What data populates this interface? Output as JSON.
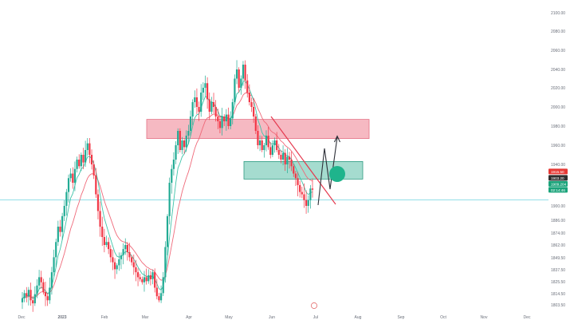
{
  "chart_data": {
    "type": "candlestick",
    "y_ticks": [
      2100,
      2080,
      2060,
      2040,
      2020,
      2000,
      1980,
      1960,
      1940,
      1920,
      1900,
      1886,
      1874,
      1862,
      1849.5,
      1837.5,
      1825.5,
      1814.5,
      1803.5
    ],
    "y_tick_labels": [
      "2100.00",
      "2080.00",
      "2060.00",
      "2040.00",
      "2020.00",
      "2000.00",
      "1980.00",
      "1960.00",
      "1940.00",
      "1920.00",
      "1900.00",
      "1886.00",
      "1874.00",
      "1862.00",
      "1849.50",
      "1837.50",
      "1825.50",
      "1814.50",
      "1803.50"
    ],
    "x_ticks": [
      {
        "label": "Dec",
        "bold": false
      },
      {
        "label": "2023",
        "bold": true
      },
      {
        "label": "Feb",
        "bold": false
      },
      {
        "label": "Mar",
        "bold": false
      },
      {
        "label": "Apr",
        "bold": false
      },
      {
        "label": "May",
        "bold": false
      },
      {
        "label": "Jun",
        "bold": false
      },
      {
        "label": "Jul",
        "bold": false
      },
      {
        "label": "Aug",
        "bold": false
      },
      {
        "label": "Sep",
        "bold": false
      },
      {
        "label": "Oct",
        "bold": false
      },
      {
        "label": "Nov",
        "bold": false
      },
      {
        "label": "Dec",
        "bold": false
      }
    ],
    "price_tags": [
      {
        "label": "1915.50",
        "color": "#e53935"
      },
      {
        "label": "1903.20",
        "color": "#2f2f2f"
      },
      {
        "label": "1909.204",
        "color": "#1aa37a"
      },
      {
        "label": "02:14:46",
        "color": "#1aa37a"
      }
    ],
    "current_price": 1915.5,
    "event_marker": "",
    "closes": [
      1810,
      1815,
      1812,
      1818,
      1808,
      1805,
      1814,
      1822,
      1830,
      1825,
      1816,
      1812,
      1808,
      1820,
      1835,
      1850,
      1865,
      1880,
      1875,
      1890,
      1900,
      1912,
      1925,
      1930,
      1920,
      1935,
      1945,
      1938,
      1950,
      1942,
      1955,
      1962,
      1950,
      1940,
      1928,
      1910,
      1895,
      1880,
      1870,
      1862,
      1865,
      1858,
      1850,
      1845,
      1838,
      1842,
      1848,
      1852,
      1858,
      1862,
      1855,
      1850,
      1845,
      1840,
      1835,
      1830,
      1828,
      1825,
      1830,
      1826,
      1832,
      1828,
      1835,
      1820,
      1812,
      1808,
      1815,
      1830,
      1860,
      1890,
      1920,
      1935,
      1945,
      1960,
      1975,
      1955,
      1965,
      1958,
      1970,
      1975,
      1990,
      2005,
      2010,
      2000,
      1995,
      2015,
      2020,
      2025,
      2008,
      1995,
      2005,
      2000,
      1990,
      1985,
      1978,
      1990,
      1985,
      1992,
      1980,
      1988,
      2005,
      2030,
      2040,
      2020,
      2030,
      2045,
      2028,
      2015,
      2005,
      2000,
      1990,
      1975,
      1960,
      1965,
      1955,
      1960,
      1970,
      1958,
      1950,
      1960,
      1965,
      1955,
      1950,
      1945,
      1952,
      1940,
      1948,
      1945,
      1938,
      1930,
      1925,
      1918,
      1912,
      1910,
      1905,
      1900,
      1905,
      1915,
      1914
    ],
    "series": [
      {
        "name": "",
        "color": "#ef6a7a"
      },
      {
        "name": "",
        "color": "#3fc4a9"
      }
    ]
  },
  "annotations": {
    "resistance_zone": {
      "y_top": 1987,
      "y_bottom": 1967,
      "color": "#f3a1ad"
    },
    "support_zone": {
      "y_top": 1943,
      "y_bottom": 1924,
      "color": "#8fd3c3"
    },
    "trendline_color": "#e53a4f",
    "arrow_color": "#2d3038",
    "target_circle_color": "#1fb48c"
  }
}
